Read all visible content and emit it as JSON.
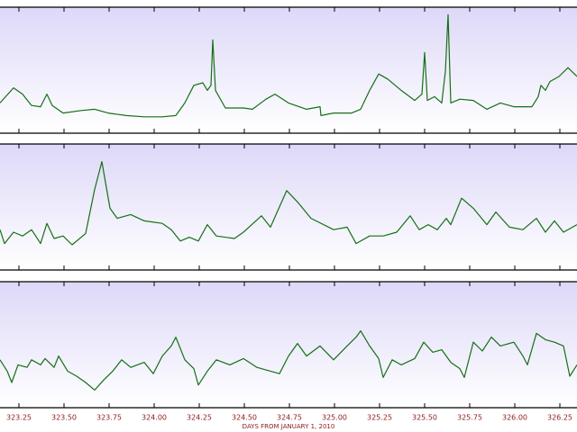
{
  "chart_data": [
    {
      "type": "line",
      "color": "#157015",
      "x": [
        323.145,
        323.22,
        323.27,
        323.32,
        323.37,
        323.405,
        323.435,
        323.495,
        323.595,
        323.67,
        323.745,
        323.845,
        323.945,
        324.045,
        324.12,
        324.17,
        324.22,
        324.27,
        324.295,
        324.315,
        324.325,
        324.34,
        324.395,
        324.495,
        324.545,
        324.62,
        324.67,
        324.745,
        324.845,
        324.92,
        324.925,
        324.995,
        325.095,
        325.145,
        325.195,
        325.245,
        325.295,
        325.37,
        325.445,
        325.485,
        325.5,
        325.515,
        325.555,
        325.595,
        325.615,
        325.63,
        325.645,
        325.695,
        325.77,
        325.845,
        325.92,
        325.995,
        326.095,
        326.13,
        326.145,
        326.17,
        326.195,
        326.245,
        326.295,
        326.345
      ],
      "values": [
        0.24,
        0.36,
        0.31,
        0.22,
        0.21,
        0.31,
        0.22,
        0.16,
        0.18,
        0.19,
        0.16,
        0.14,
        0.13,
        0.13,
        0.14,
        0.24,
        0.38,
        0.4,
        0.34,
        0.38,
        0.74,
        0.34,
        0.2,
        0.2,
        0.19,
        0.27,
        0.31,
        0.24,
        0.19,
        0.21,
        0.14,
        0.16,
        0.16,
        0.19,
        0.34,
        0.47,
        0.43,
        0.34,
        0.26,
        0.31,
        0.64,
        0.26,
        0.29,
        0.24,
        0.49,
        0.94,
        0.24,
        0.27,
        0.26,
        0.19,
        0.24,
        0.21,
        0.21,
        0.29,
        0.38,
        0.34,
        0.41,
        0.45,
        0.52,
        0.45
      ],
      "xlim": [
        323.145,
        326.345
      ],
      "ylim": [
        0,
        1
      ],
      "xticks": [
        323.25,
        {
          "value": 323.5,
          "label": "323.50"
        },
        323.75,
        {
          "value": 324,
          "label": "324.00"
        },
        324.25,
        {
          "value": 324.5,
          "label": "324.50"
        },
        324.75,
        {
          "value": 325,
          "label": "325.00"
        },
        325.25,
        {
          "value": 325.5,
          "label": "325.50"
        },
        325.75,
        {
          "value": 326,
          "label": "326.00"
        },
        326.25
      ],
      "show_tick_labels": false
    },
    {
      "type": "line",
      "color": "#157015",
      "x": [
        323.145,
        323.17,
        323.22,
        323.27,
        323.32,
        323.37,
        323.405,
        323.445,
        323.495,
        323.545,
        323.62,
        323.67,
        323.71,
        323.755,
        323.795,
        323.87,
        323.945,
        324.045,
        324.095,
        324.145,
        324.195,
        324.245,
        324.295,
        324.345,
        324.445,
        324.495,
        324.595,
        324.645,
        324.735,
        324.795,
        324.87,
        324.995,
        325.07,
        325.12,
        325.195,
        325.27,
        325.345,
        325.42,
        325.47,
        325.52,
        325.57,
        325.62,
        325.645,
        325.705,
        325.77,
        325.845,
        325.895,
        325.97,
        326.045,
        326.12,
        326.17,
        326.22,
        326.27,
        326.345
      ],
      "values": [
        0.32,
        0.21,
        0.3,
        0.27,
        0.32,
        0.21,
        0.37,
        0.25,
        0.27,
        0.2,
        0.29,
        0.64,
        0.86,
        0.49,
        0.41,
        0.44,
        0.39,
        0.37,
        0.32,
        0.23,
        0.26,
        0.23,
        0.36,
        0.27,
        0.25,
        0.3,
        0.43,
        0.34,
        0.63,
        0.54,
        0.41,
        0.32,
        0.34,
        0.21,
        0.27,
        0.27,
        0.3,
        0.43,
        0.32,
        0.36,
        0.32,
        0.41,
        0.36,
        0.57,
        0.49,
        0.36,
        0.46,
        0.34,
        0.32,
        0.41,
        0.3,
        0.39,
        0.3,
        0.36
      ],
      "xlim": [
        323.145,
        326.345
      ],
      "ylim": [
        0,
        1
      ],
      "xticks": [
        323.25,
        {
          "value": 323.5,
          "label": "323.50"
        },
        323.75,
        {
          "value": 324,
          "label": "324.00"
        },
        324.25,
        {
          "value": 324.5,
          "label": "324.50"
        },
        324.75,
        {
          "value": 325,
          "label": "325.00"
        },
        325.25,
        {
          "value": 325.5,
          "label": "325.50"
        },
        325.75,
        {
          "value": 326,
          "label": "326.00"
        },
        326.25
      ],
      "show_tick_labels": false
    },
    {
      "type": "line",
      "color": "#157015",
      "x": [
        323.145,
        323.185,
        323.21,
        323.245,
        323.295,
        323.32,
        323.37,
        323.395,
        323.445,
        323.47,
        323.52,
        323.57,
        323.62,
        323.67,
        323.72,
        323.77,
        323.82,
        323.87,
        323.945,
        323.995,
        324.045,
        324.095,
        324.12,
        324.17,
        324.22,
        324.245,
        324.295,
        324.345,
        324.42,
        324.495,
        324.57,
        324.645,
        324.695,
        324.745,
        324.795,
        324.845,
        324.92,
        324.995,
        325.07,
        325.12,
        325.145,
        325.195,
        325.245,
        325.27,
        325.32,
        325.37,
        325.445,
        325.495,
        325.545,
        325.595,
        325.645,
        325.695,
        325.72,
        325.77,
        325.82,
        325.87,
        325.92,
        325.995,
        326.045,
        326.07,
        326.12,
        326.17,
        326.22,
        326.27,
        326.305,
        326.345
      ],
      "values": [
        0.38,
        0.29,
        0.2,
        0.34,
        0.32,
        0.38,
        0.34,
        0.39,
        0.32,
        0.41,
        0.29,
        0.25,
        0.2,
        0.14,
        0.22,
        0.29,
        0.38,
        0.32,
        0.36,
        0.27,
        0.41,
        0.49,
        0.56,
        0.38,
        0.31,
        0.18,
        0.29,
        0.38,
        0.34,
        0.39,
        0.32,
        0.29,
        0.27,
        0.41,
        0.51,
        0.41,
        0.49,
        0.38,
        0.49,
        0.56,
        0.61,
        0.49,
        0.39,
        0.24,
        0.38,
        0.34,
        0.39,
        0.52,
        0.44,
        0.46,
        0.36,
        0.31,
        0.24,
        0.52,
        0.45,
        0.56,
        0.49,
        0.52,
        0.41,
        0.34,
        0.59,
        0.54,
        0.52,
        0.49,
        0.25,
        0.34
      ],
      "xlim": [
        323.145,
        326.345
      ],
      "ylim": [
        0,
        1
      ],
      "xticks": [
        323.25,
        {
          "value": 323.5,
          "label": "323.50"
        },
        323.75,
        {
          "value": 324,
          "label": "324.00"
        },
        324.25,
        {
          "value": 324.5,
          "label": "324.50"
        },
        324.75,
        {
          "value": 325,
          "label": "325.00"
        },
        325.25,
        {
          "value": 325.5,
          "label": "325.50"
        },
        325.75,
        {
          "value": 326,
          "label": "326.00"
        },
        326.25
      ],
      "show_tick_labels": true,
      "xlabel": "DAYS FROM JANUARY 1, 2010"
    }
  ]
}
